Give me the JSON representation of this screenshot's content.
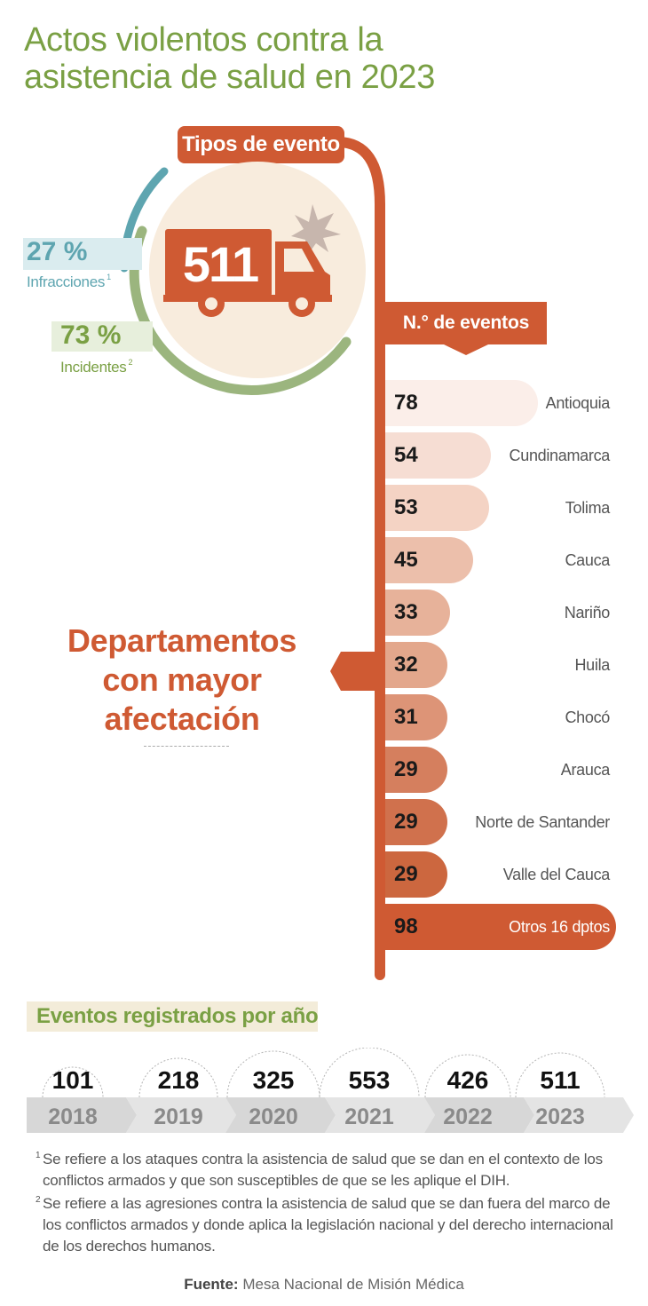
{
  "title": {
    "line1": "Actos violentos contra la",
    "line2": "asistencia de salud en 2023"
  },
  "event_types": {
    "header": "Tipos de evento",
    "total": "511",
    "infracciones_pct": "27 %",
    "infracciones_label": "Infracciones",
    "infracciones_note": "1",
    "incidentes_pct": "73 %",
    "incidentes_label": "Incidentes",
    "incidentes_note": "2"
  },
  "departments": {
    "column_header": "N.° de eventos",
    "heading_line1": "Departamentos",
    "heading_line2": "con mayor",
    "heading_line3": "afectación"
  },
  "yearly": {
    "title": "Eventos registrados por año"
  },
  "chart_data": [
    {
      "type": "pie",
      "categories": [
        "Infracciones",
        "Incidentes"
      ],
      "values": [
        27,
        73
      ],
      "title": "Tipos de evento",
      "total": 511
    },
    {
      "type": "bar",
      "title": "N.° de eventos",
      "categories": [
        "Antioquia",
        "Cundinamarca",
        "Tolima",
        "Cauca",
        "Nariño",
        "Huila",
        "Chocó",
        "Arauca",
        "Norte de Santander",
        "Valle del Cauca",
        "Otros 16 dptos"
      ],
      "values": [
        78,
        54,
        53,
        45,
        33,
        32,
        31,
        29,
        29,
        29,
        98
      ]
    },
    {
      "type": "table",
      "title": "Eventos registrados por año",
      "categories": [
        "2018",
        "2019",
        "2020",
        "2021",
        "2022",
        "2023"
      ],
      "values": [
        101,
        218,
        325,
        553,
        426,
        511
      ]
    }
  ],
  "colors": {
    "title_green": "#7aa044",
    "accent_orange": "#cf5a33",
    "infracciones_teal": "#5ea5b0",
    "incidentes_green": "#9bb57e",
    "circle_cream": "#f8ecdd"
  },
  "footnotes": {
    "n1_mark": "1",
    "n1_text": "Se refiere a los ataques contra la asistencia de salud que se dan en el contexto de los conflictos armados y que son susceptibles de que se les aplique el DIH.",
    "n2_mark": "2",
    "n2_text": "Se refiere a las agresiones contra la asistencia de salud que se dan fuera del marco de los conflictos armados y donde aplica la legislación nacional y del derecho internacional de los derechos humanos."
  },
  "source": {
    "label": "Fuente:",
    "text": "Mesa Nacional de Misión Médica"
  }
}
